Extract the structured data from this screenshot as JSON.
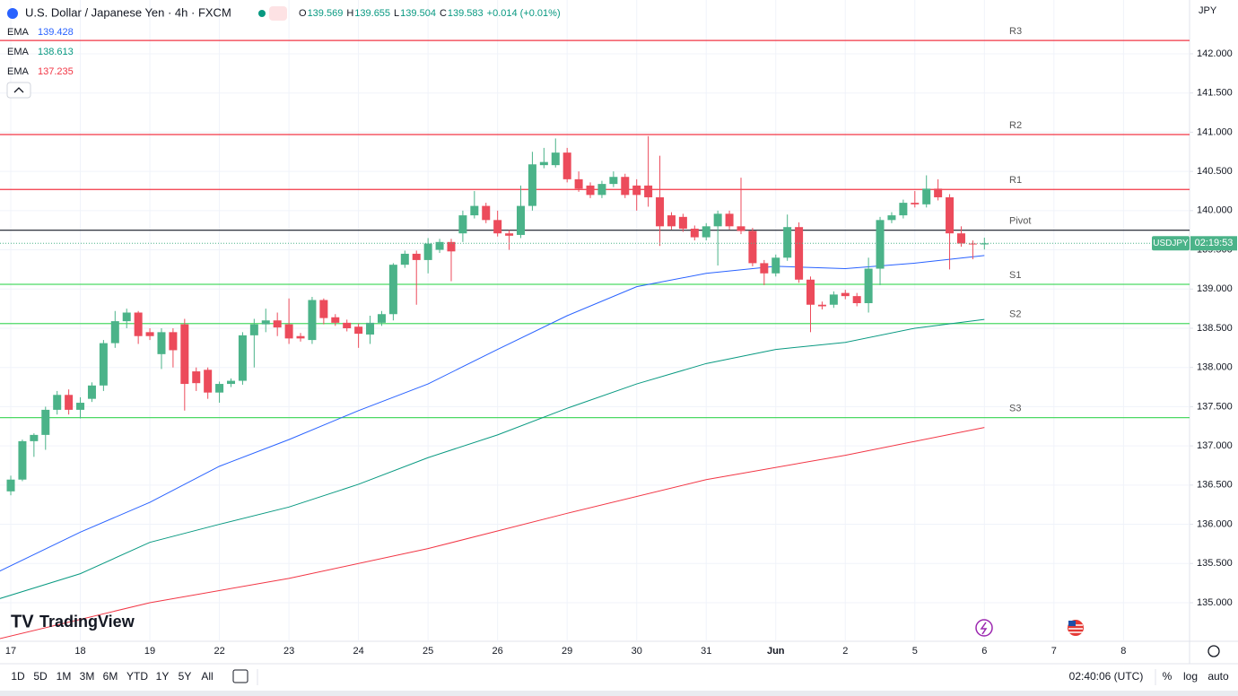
{
  "header": {
    "symbol": "U.S. Dollar / Japanese Yen · 4h · FXCM",
    "ohlc": [
      {
        "label": "O",
        "value": "139.569"
      },
      {
        "label": "H",
        "value": "139.655"
      },
      {
        "label": "L",
        "value": "139.504"
      },
      {
        "label": "C",
        "value": "139.583"
      }
    ],
    "change": "+0.014 (+0.01%)",
    "currency": "JPY"
  },
  "brand": "TradingView",
  "toolbar": {
    "ranges": [
      "1D",
      "5D",
      "1M",
      "3M",
      "6M",
      "YTD",
      "1Y",
      "5Y",
      "All"
    ],
    "clock": "02:40:06 (UTC)",
    "options": [
      "%",
      "log",
      "auto"
    ]
  },
  "chart_data": {
    "type": "candlestick",
    "up_color": "#4bb389",
    "down_color": "#ec4b5b",
    "grid": true,
    "xlim": [
      -0.93,
      101.7
    ],
    "ylim": [
      134.508,
      142.686
    ],
    "xticks": [
      {
        "value": 0,
        "label": "17"
      },
      {
        "value": 6,
        "label": "18"
      },
      {
        "value": 12,
        "label": "19"
      },
      {
        "value": 18,
        "label": "22"
      },
      {
        "value": 24,
        "label": "23"
      },
      {
        "value": 30,
        "label": "24"
      },
      {
        "value": 36,
        "label": "25"
      },
      {
        "value": 42,
        "label": "26"
      },
      {
        "value": 48,
        "label": "29"
      },
      {
        "value": 54,
        "label": "30"
      },
      {
        "value": 60,
        "label": "31"
      },
      {
        "value": 66,
        "label": "Jun"
      },
      {
        "value": 72,
        "label": "2"
      },
      {
        "value": 78,
        "label": "5"
      },
      {
        "value": 84,
        "label": "6"
      },
      {
        "value": 90,
        "label": "7"
      },
      {
        "value": 96,
        "label": "8"
      }
    ],
    "yticks": [
      {
        "value": 135,
        "label": "135.000"
      },
      {
        "value": 135.5,
        "label": "135.500"
      },
      {
        "value": 136,
        "label": "136.000"
      },
      {
        "value": 136.5,
        "label": "136.500"
      },
      {
        "value": 137,
        "label": "137.000"
      },
      {
        "value": 137.5,
        "label": "137.500"
      },
      {
        "value": 138,
        "label": "138.000"
      },
      {
        "value": 138.5,
        "label": "138.500"
      },
      {
        "value": 139,
        "label": "139.000"
      },
      {
        "value": 139.5,
        "label": "139.500"
      },
      {
        "value": 140,
        "label": "140.000"
      },
      {
        "value": 140.5,
        "label": "140.500"
      },
      {
        "value": 141,
        "label": "141.000"
      },
      {
        "value": 141.5,
        "label": "141.500"
      },
      {
        "value": 142,
        "label": "142.000"
      }
    ],
    "x": [
      0,
      1,
      2,
      3,
      4,
      5,
      6,
      7,
      8,
      9,
      10,
      11,
      12,
      13,
      14,
      15,
      16,
      17,
      18,
      19,
      20,
      21,
      22,
      23,
      24,
      25,
      26,
      27,
      28,
      29,
      30,
      31,
      32,
      33,
      34,
      35,
      36,
      37,
      38,
      39,
      40,
      41,
      42,
      43,
      44,
      45,
      46,
      47,
      48,
      49,
      50,
      51,
      52,
      53,
      54,
      55,
      56,
      57,
      58,
      59,
      60,
      61,
      62,
      63,
      64,
      65,
      66,
      67,
      68,
      69,
      70,
      71,
      72,
      73,
      74,
      75,
      76,
      77,
      78,
      79,
      80,
      81,
      82,
      83,
      84
    ],
    "open": [
      136.42,
      136.57,
      137.06,
      137.14,
      137.46,
      137.65,
      137.46,
      137.6,
      137.77,
      138.31,
      138.59,
      138.7,
      138.45,
      138.17,
      138.45,
      138.55,
      137.95,
      137.97,
      137.68,
      137.79,
      137.83,
      138.41,
      138.55,
      138.6,
      138.55,
      138.4,
      138.35,
      138.86,
      138.64,
      138.57,
      138.52,
      138.42,
      138.57,
      138.68,
      139.31,
      139.45,
      139.37,
      139.5,
      139.6,
      139.71,
      139.94,
      140.06,
      139.88,
      139.71,
      139.69,
      140.06,
      140.58,
      140.58,
      140.74,
      140.4,
      140.32,
      140.2,
      140.34,
      140.43,
      140.32,
      140.32,
      140.17,
      139.94,
      139.92,
      139.77,
      139.66,
      139.8,
      139.96,
      139.8,
      139.74,
      139.33,
      139.2,
      139.4,
      139.79,
      139.12,
      138.8,
      138.8,
      138.95,
      138.91,
      138.82,
      139.26,
      139.88,
      139.94,
      140.1,
      140.08,
      140.28,
      140.17,
      139.71,
      139.58,
      139.569
    ],
    "high": [
      136.62,
      137.08,
      137.16,
      137.5,
      137.7,
      137.72,
      137.62,
      137.81,
      138.35,
      138.72,
      138.75,
      138.72,
      138.5,
      138.5,
      138.5,
      138.62,
      138.0,
      138.0,
      137.82,
      137.86,
      138.45,
      138.62,
      138.75,
      138.7,
      138.88,
      138.44,
      138.9,
      138.88,
      138.68,
      138.61,
      138.56,
      138.66,
      138.72,
      139.33,
      139.49,
      139.49,
      139.65,
      139.64,
      139.64,
      140.0,
      140.25,
      140.1,
      140.0,
      139.75,
      140.32,
      140.75,
      140.8,
      140.92,
      140.8,
      140.5,
      140.36,
      140.38,
      140.5,
      140.47,
      140.4,
      140.95,
      140.7,
      139.98,
      139.96,
      139.81,
      139.84,
      140.0,
      140.0,
      140.42,
      139.78,
      139.37,
      139.44,
      139.95,
      139.85,
      139.16,
      138.84,
      138.97,
      138.99,
      138.95,
      139.4,
      139.92,
      139.98,
      140.14,
      140.25,
      140.45,
      140.4,
      140.21,
      139.8,
      139.62,
      139.655
    ],
    "low": [
      136.37,
      136.55,
      136.86,
      136.95,
      137.4,
      137.4,
      137.35,
      137.56,
      137.7,
      138.25,
      138.5,
      138.3,
      138.35,
      137.98,
      138.0,
      137.45,
      137.7,
      137.6,
      137.55,
      137.75,
      137.78,
      138.0,
      138.45,
      138.4,
      138.3,
      138.33,
      138.3,
      138.55,
      138.53,
      138.46,
      138.25,
      138.3,
      138.53,
      138.6,
      139.27,
      138.8,
      139.2,
      139.46,
      139.1,
      139.6,
      139.9,
      139.84,
      139.67,
      139.5,
      139.65,
      140.0,
      140.54,
      140.55,
      140.36,
      140.24,
      140.16,
      140.16,
      140.3,
      140.16,
      140.0,
      140.05,
      139.55,
      139.76,
      139.73,
      139.62,
      139.62,
      139.3,
      139.76,
      139.7,
      139.29,
      139.05,
      139.16,
      139.36,
      139.08,
      138.45,
      138.74,
      138.76,
      138.87,
      138.78,
      138.7,
      139.05,
      139.84,
      139.9,
      140.04,
      140.04,
      140.13,
      139.25,
      139.54,
      139.38,
      139.504
    ],
    "close": [
      136.57,
      137.06,
      137.14,
      137.46,
      137.65,
      137.46,
      137.55,
      137.77,
      138.31,
      138.59,
      138.7,
      138.4,
      138.4,
      138.45,
      138.22,
      137.79,
      137.8,
      137.68,
      137.79,
      137.83,
      138.41,
      138.55,
      138.6,
      138.51,
      138.37,
      138.37,
      138.86,
      138.63,
      138.57,
      138.5,
      138.43,
      138.57,
      138.68,
      139.31,
      139.45,
      139.37,
      139.58,
      139.6,
      139.48,
      139.94,
      140.06,
      139.88,
      139.71,
      139.68,
      140.06,
      140.59,
      140.62,
      140.74,
      140.4,
      140.28,
      140.2,
      140.34,
      140.43,
      140.2,
      140.2,
      140.17,
      139.8,
      139.8,
      139.77,
      139.66,
      139.8,
      139.96,
      139.8,
      139.74,
      139.33,
      139.2,
      139.4,
      139.79,
      139.12,
      138.8,
      138.78,
      138.93,
      138.91,
      138.82,
      139.26,
      139.88,
      139.94,
      140.1,
      140.08,
      140.28,
      140.17,
      139.71,
      139.58,
      139.57,
      139.583
    ],
    "series": [
      {
        "name": "EMA",
        "color": "#2962ff",
        "last": 139.428,
        "x": [
          -1,
          6,
          12,
          18,
          24,
          30,
          36,
          42,
          48,
          54,
          60,
          66,
          72,
          78,
          84
        ],
        "values": [
          135.4,
          135.9,
          136.28,
          136.74,
          137.08,
          137.45,
          137.79,
          138.23,
          138.66,
          139.03,
          139.2,
          139.29,
          139.26,
          139.33,
          139.428
        ]
      },
      {
        "name": "EMA",
        "color": "#089981",
        "last": 138.613,
        "x": [
          -1,
          6,
          12,
          18,
          24,
          30,
          36,
          42,
          48,
          54,
          60,
          66,
          72,
          78,
          84
        ],
        "values": [
          135.05,
          135.37,
          135.77,
          136.0,
          136.22,
          136.51,
          136.85,
          137.14,
          137.48,
          137.79,
          138.05,
          138.23,
          138.32,
          138.5,
          138.613
        ]
      },
      {
        "name": "EMA",
        "color": "#f23645",
        "last": 137.235,
        "x": [
          -1,
          12,
          24,
          36,
          48,
          60,
          72,
          84
        ],
        "values": [
          134.54,
          135.0,
          135.31,
          135.69,
          136.14,
          136.57,
          136.88,
          137.235
        ]
      }
    ],
    "levels": [
      {
        "name": "R3",
        "value": 142.17,
        "color": "#f23645"
      },
      {
        "name": "R2",
        "value": 140.97,
        "color": "#f23645"
      },
      {
        "name": "R1",
        "value": 140.27,
        "color": "#f23645"
      },
      {
        "name": "Pivot",
        "value": 139.75,
        "color": "#131722"
      },
      {
        "name": "S1",
        "value": 139.06,
        "color": "#4cd964"
      },
      {
        "name": "S2",
        "value": 138.56,
        "color": "#4cd964"
      },
      {
        "name": "S3",
        "value": 137.36,
        "color": "#4cd964"
      }
    ],
    "price_tag": {
      "symbol": "USDJPY",
      "countdown": "02:19:53"
    }
  }
}
